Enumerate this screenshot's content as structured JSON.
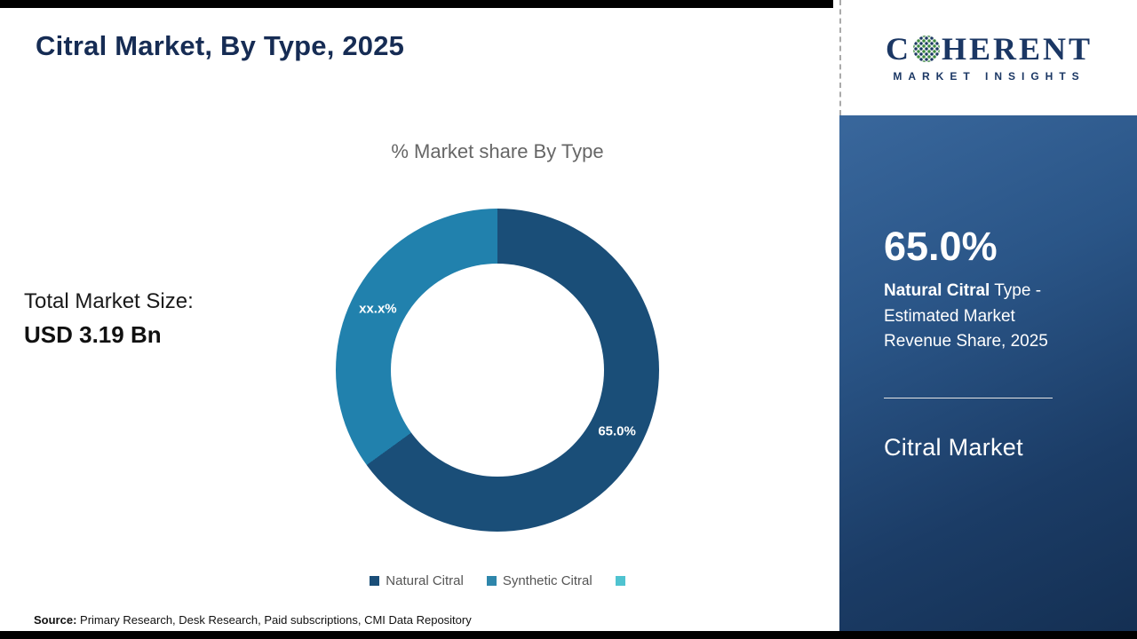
{
  "header": {
    "title": "Citral Market, By Type, 2025"
  },
  "brand": {
    "part1": "C",
    "part2": "HERENT",
    "subtitle": "MARKET INSIGHTS"
  },
  "chart_data": {
    "type": "pie",
    "donut": true,
    "title": "% Market share By Type",
    "slices": [
      {
        "label": "Natural Citral",
        "value": 65.0,
        "display_label": "65.0%",
        "color": "#1a4e78"
      },
      {
        "label": "Synthetic Citral",
        "value": 35.0,
        "display_label": "xx.x%",
        "color": "#2181ad"
      }
    ],
    "legend": {
      "position": "bottom",
      "items": [
        {
          "label": "Natural Citral",
          "color": "#1a4e78"
        },
        {
          "label": "Synthetic Citral",
          "color": "#2e86ab"
        },
        {
          "label": "",
          "color": "#4fc3d0"
        }
      ]
    }
  },
  "left": {
    "total_label": "Total Market Size:",
    "total_value": "USD 3.19 Bn"
  },
  "sidebar": {
    "stat_value": "65.0%",
    "stat_bold": " Natural Citral",
    "stat_rest": " Type - Estimated Market Revenue Share, 2025",
    "market_name": "Citral Market"
  },
  "footer": {
    "source_label": "Source:",
    "source_text": " Primary Research, Desk Research, Paid subscriptions, CMI Data Repository"
  }
}
